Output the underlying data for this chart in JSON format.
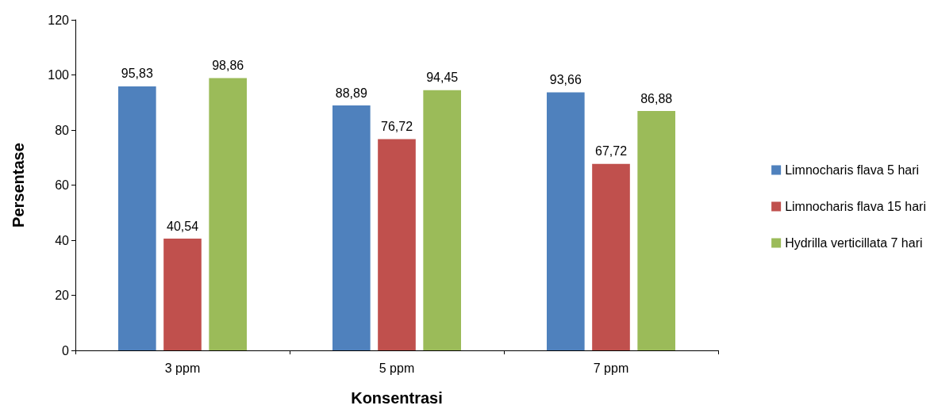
{
  "chart_data": {
    "type": "bar",
    "xlabel": "Konsentrasi",
    "ylabel": "Persentase",
    "categories": [
      "3 ppm",
      "5 ppm",
      "7 ppm"
    ],
    "series": [
      {
        "name": "Limnocharis flava 5 hari",
        "color": "#4f81bd",
        "values": [
          95.83,
          88.89,
          93.66
        ],
        "value_labels": [
          "95,83",
          "88,89",
          "93,66"
        ]
      },
      {
        "name": "Limnocharis flava 15 hari",
        "color": "#c0504d",
        "values": [
          40.54,
          76.72,
          67.72
        ],
        "value_labels": [
          "40,54",
          "76,72",
          "67,72"
        ]
      },
      {
        "name": "Hydrilla verticillata 7 hari",
        "color": "#9bbb59",
        "values": [
          98.86,
          94.45,
          86.88
        ],
        "value_labels": [
          "98,86",
          "94,45",
          "86,88"
        ]
      }
    ],
    "ylim": [
      0,
      120
    ],
    "yticks": [
      0,
      20,
      40,
      60,
      80,
      100,
      120
    ],
    "grid": false,
    "legend": "right"
  }
}
